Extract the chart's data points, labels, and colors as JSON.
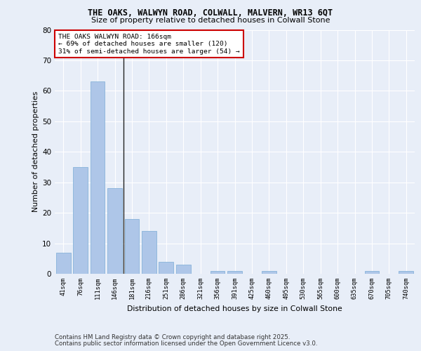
{
  "title1": "THE OAKS, WALWYN ROAD, COLWALL, MALVERN, WR13 6QT",
  "title2": "Size of property relative to detached houses in Colwall Stone",
  "xlabel": "Distribution of detached houses by size in Colwall Stone",
  "ylabel": "Number of detached properties",
  "bin_labels": [
    "41sqm",
    "76sqm",
    "111sqm",
    "146sqm",
    "181sqm",
    "216sqm",
    "251sqm",
    "286sqm",
    "321sqm",
    "356sqm",
    "391sqm",
    "425sqm",
    "460sqm",
    "495sqm",
    "530sqm",
    "565sqm",
    "600sqm",
    "635sqm",
    "670sqm",
    "705sqm",
    "740sqm"
  ],
  "bar_values": [
    7,
    35,
    63,
    28,
    18,
    14,
    4,
    3,
    0,
    1,
    1,
    0,
    1,
    0,
    0,
    0,
    0,
    0,
    1,
    0,
    1
  ],
  "bar_color": "#aec6e8",
  "bar_edge_color": "#7aacd6",
  "annotation_text": "THE OAKS WALWYN ROAD: 166sqm\n← 69% of detached houses are smaller (120)\n31% of semi-detached houses are larger (54) →",
  "annotation_box_color": "#ffffff",
  "annotation_box_edge": "#cc0000",
  "footer1": "Contains HM Land Registry data © Crown copyright and database right 2025.",
  "footer2": "Contains public sector information licensed under the Open Government Licence v3.0.",
  "ylim": [
    0,
    80
  ],
  "yticks": [
    0,
    10,
    20,
    30,
    40,
    50,
    60,
    70,
    80
  ],
  "bg_color": "#e8eef8",
  "plot_bg_color": "#e8eef8",
  "grid_color": "#ffffff",
  "vline_x": 3.5
}
